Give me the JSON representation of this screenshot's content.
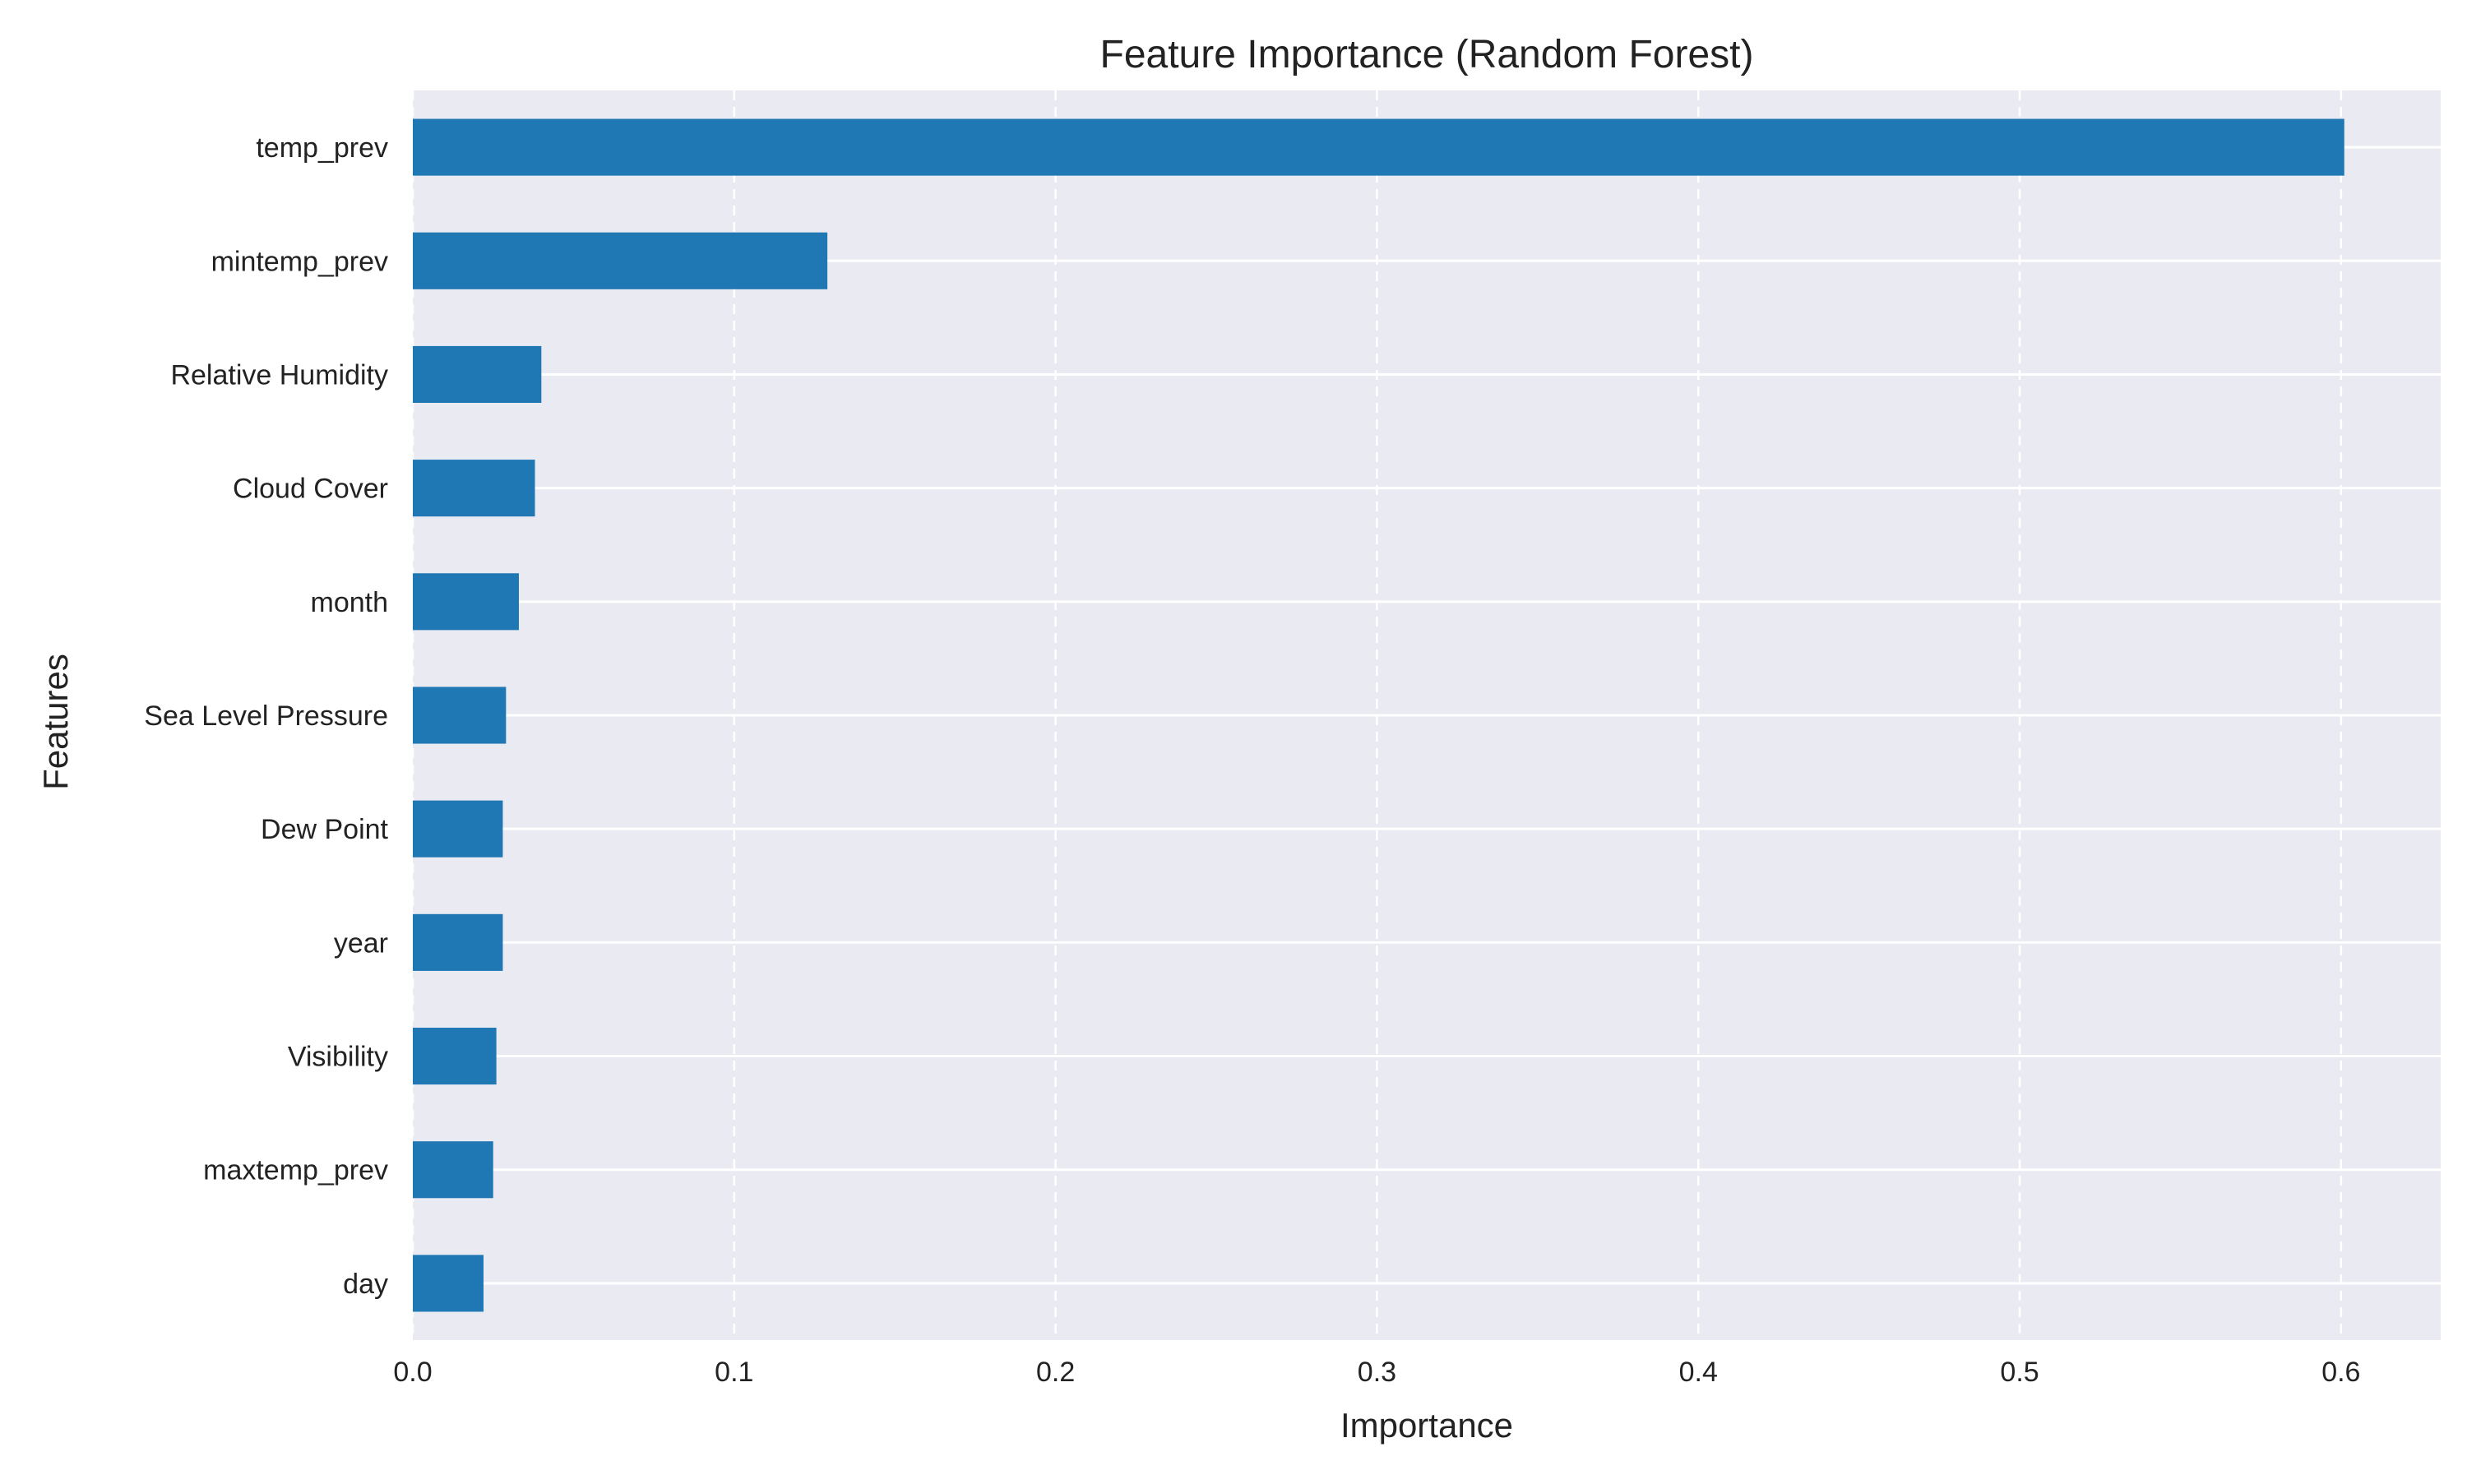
{
  "chart_data": {
    "type": "bar",
    "orientation": "horizontal",
    "title": "Feature Importance (Random Forest)",
    "xlabel": "Importance",
    "ylabel": "Features",
    "categories": [
      "temp_prev",
      "mintemp_prev",
      "Relative Humidity",
      "Cloud Cover",
      "month",
      "Sea Level Pressure",
      "Dew Point",
      "year",
      "Visibility",
      "maxtemp_prev",
      "day"
    ],
    "values": [
      0.601,
      0.129,
      0.04,
      0.038,
      0.033,
      0.029,
      0.028,
      0.028,
      0.026,
      0.025,
      0.022
    ],
    "xlim": [
      0,
      0.631
    ],
    "xticks": [
      "0.0",
      "0.1",
      "0.2",
      "0.3",
      "0.4",
      "0.5",
      "0.6"
    ],
    "grid": true,
    "colors": {
      "bar": "#1f77b4",
      "plot_background": "#eaeaf2",
      "grid": "#ffffff"
    }
  }
}
